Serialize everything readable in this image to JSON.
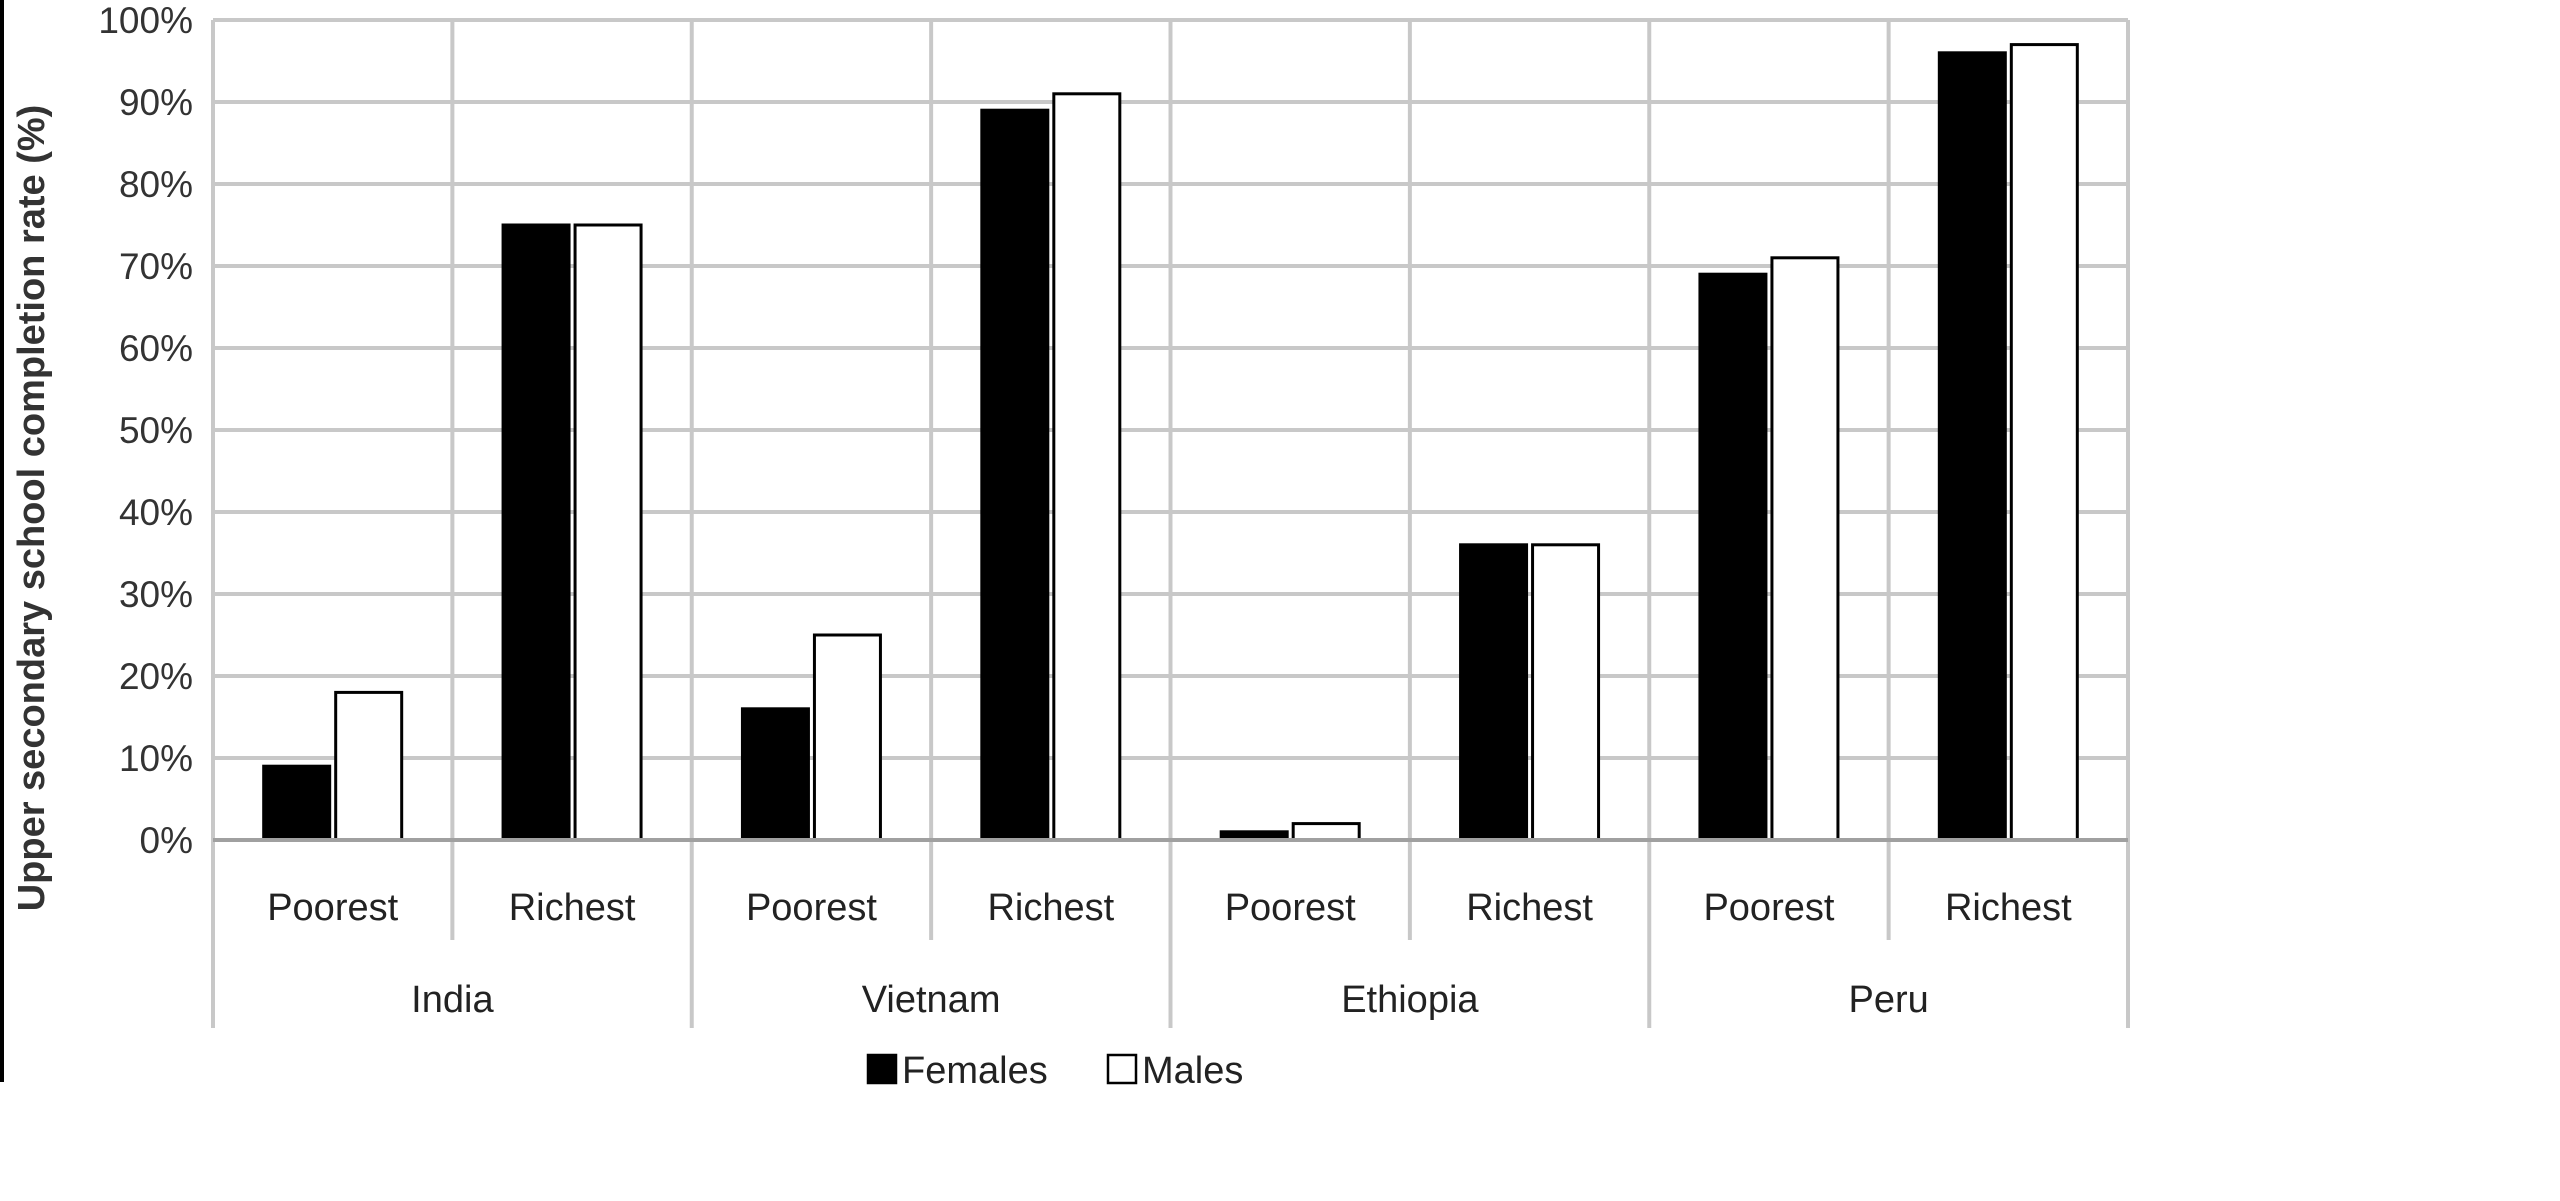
{
  "chart_data": {
    "type": "bar",
    "ylabel": "Upper secondary school completion rate (%)",
    "xlabel": "",
    "ylim": [
      0,
      100
    ],
    "yticks": [
      "0%",
      "10%",
      "20%",
      "30%",
      "40%",
      "50%",
      "60%",
      "70%",
      "80%",
      "90%",
      "100%"
    ],
    "groups": [
      "India",
      "Vietnam",
      "Ethiopia",
      "Peru"
    ],
    "subcategories": [
      "Poorest",
      "Richest"
    ],
    "categories": [
      "India Poorest",
      "India Richest",
      "Vietnam Poorest",
      "Vietnam Richest",
      "Ethiopia Poorest",
      "Ethiopia Richest",
      "Peru Poorest",
      "Peru Richest"
    ],
    "series": [
      {
        "name": "Females",
        "color": "#000000",
        "values": [
          9,
          75,
          16,
          89,
          1,
          36,
          69,
          96
        ]
      },
      {
        "name": "Males",
        "color": "#ffffff",
        "values": [
          18,
          75,
          25,
          91,
          2,
          36,
          71,
          97
        ]
      }
    ],
    "grid": true,
    "legend_position": "bottom"
  }
}
